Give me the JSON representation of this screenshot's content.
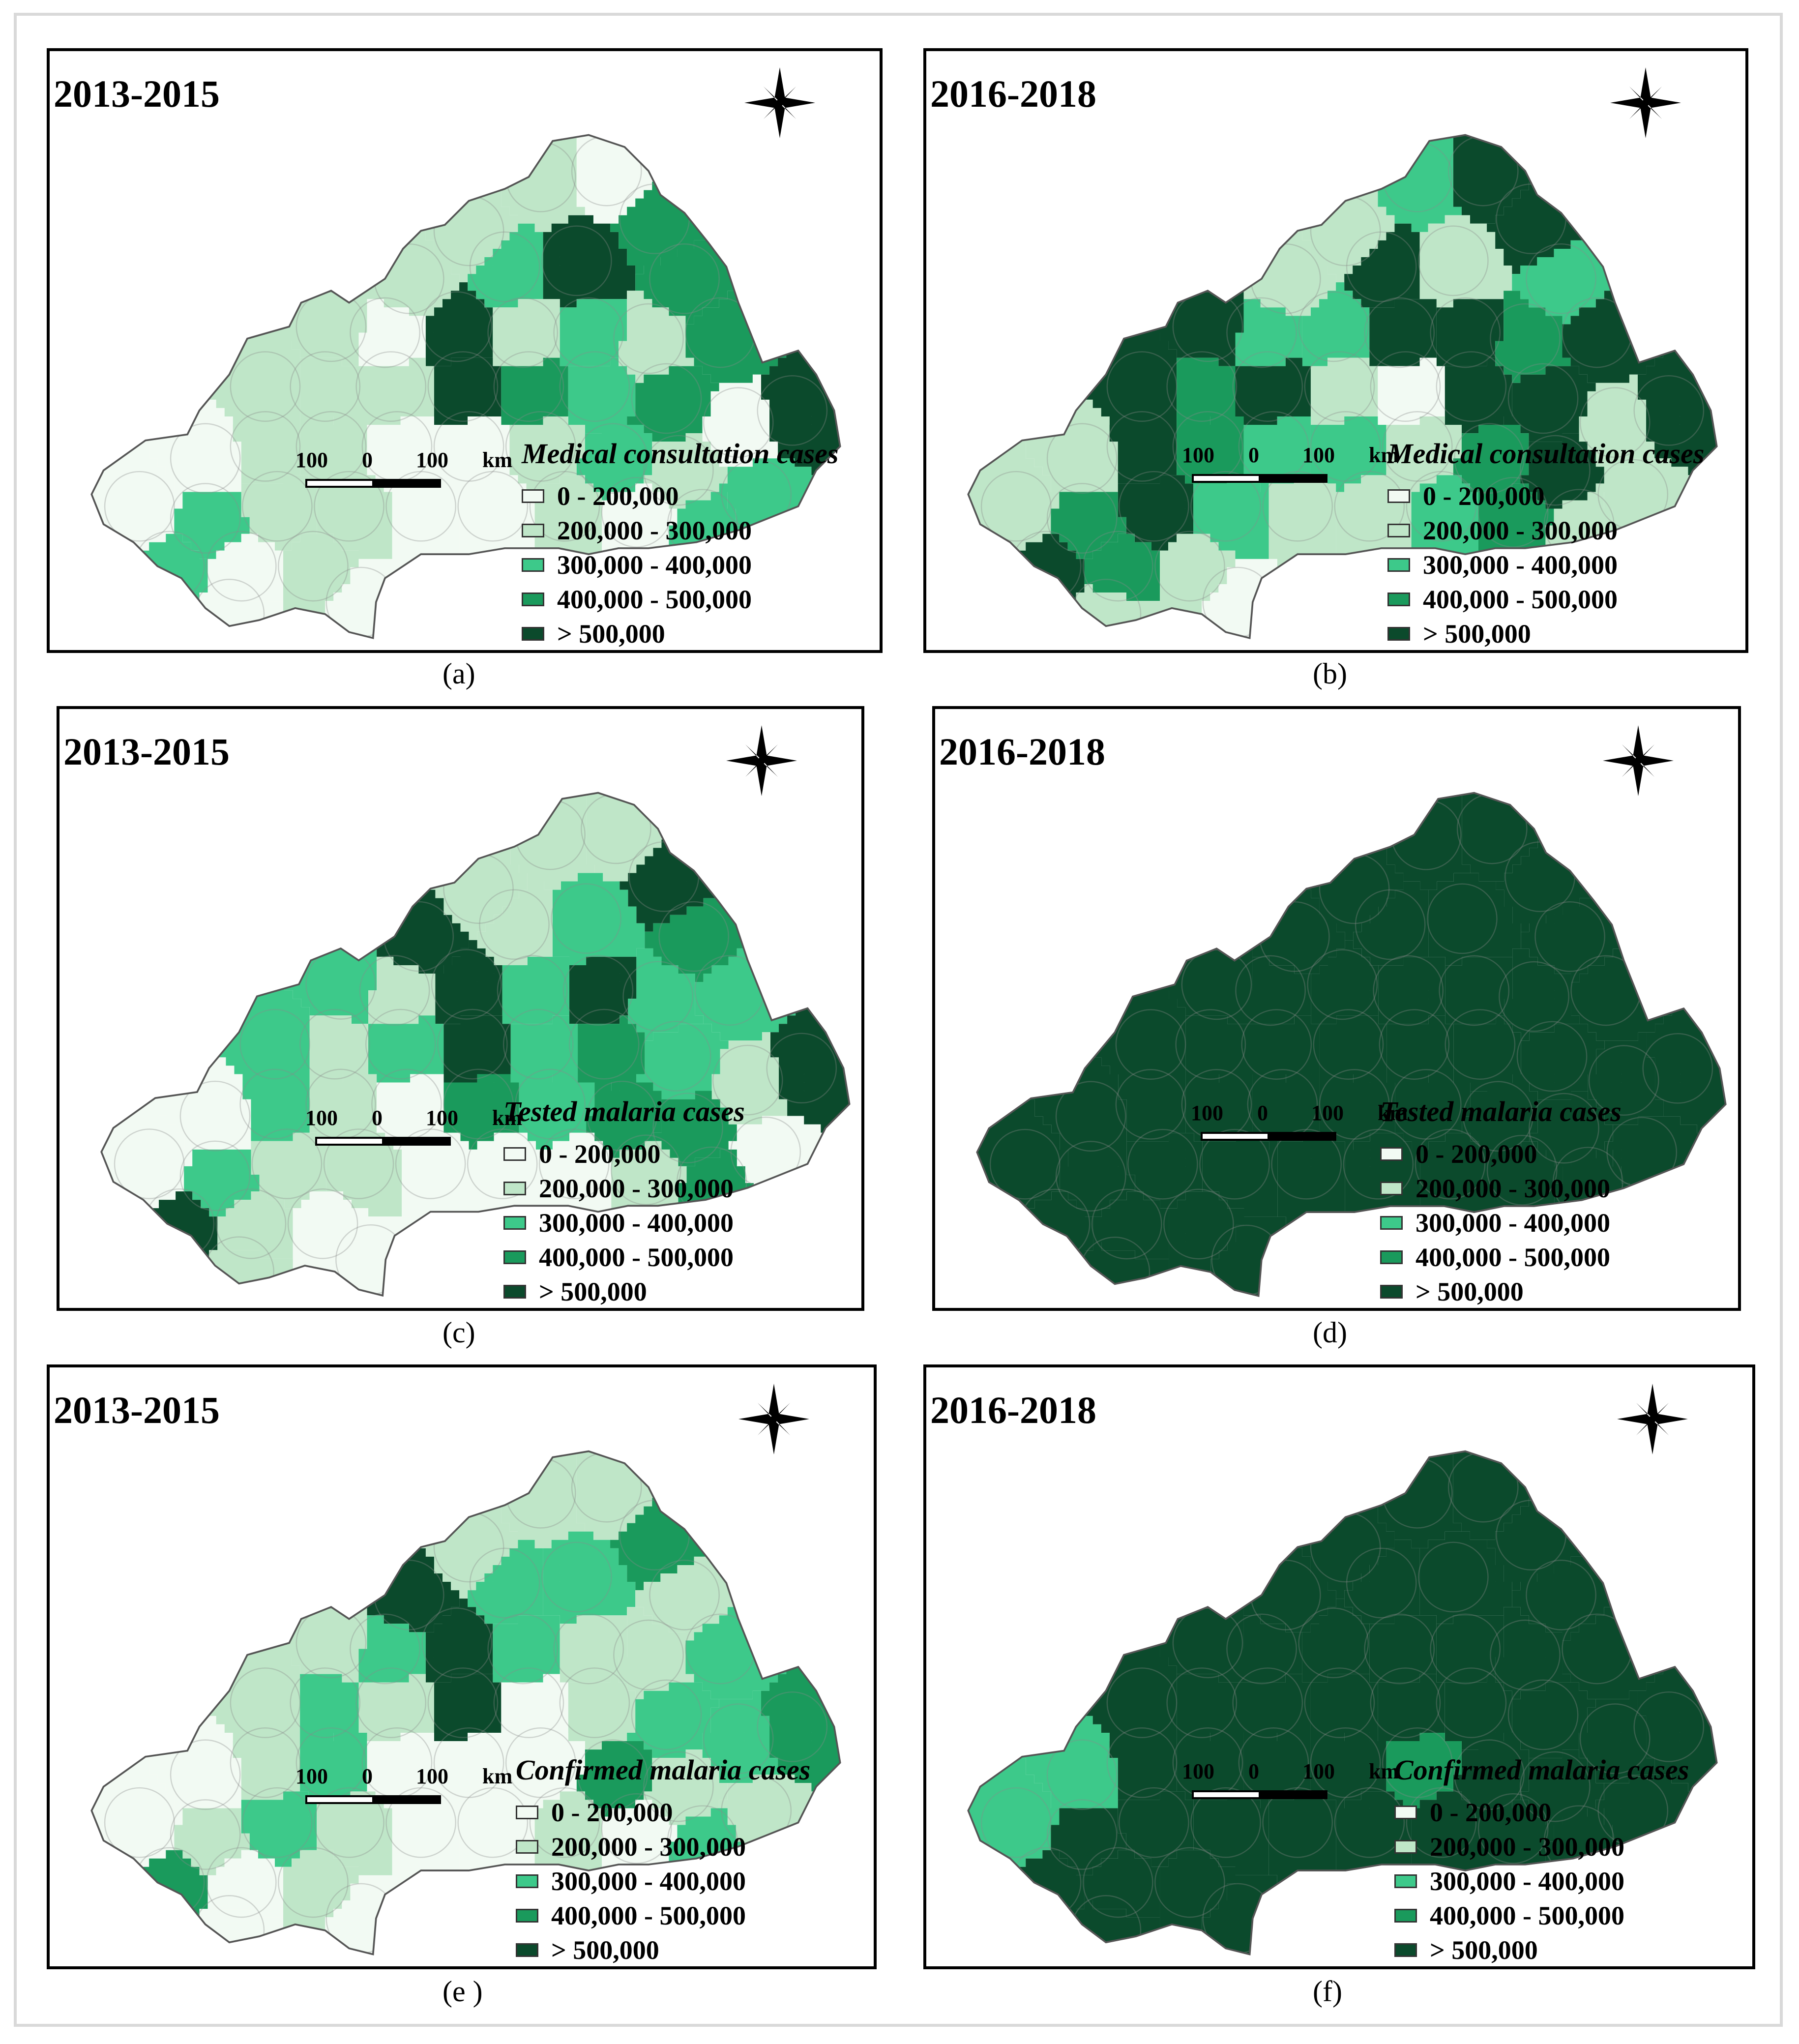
{
  "legend_classes": [
    {
      "label": "0 - 200,000",
      "color": "#f2faf3"
    },
    {
      "label": "200,000 - 300,000",
      "color": "#bfe6c8"
    },
    {
      "label": "300,000 - 400,000",
      "color": "#3dc98a"
    },
    {
      "label": "400,000 - 500,000",
      "color": "#1a9a5c"
    },
    {
      "label": "> 500,000",
      "color": "#0b4a2c"
    }
  ],
  "scale_labels": [
    "100",
    "0",
    "100",
    "km"
  ],
  "panels": [
    {
      "caption": "(a)",
      "period": "2013-2015",
      "legend_title": "Medical consultation cases",
      "dominant_class": 1
    },
    {
      "caption": "(b)",
      "period": "2016-2018",
      "legend_title": "Medical consultation cases",
      "dominant_class": 4
    },
    {
      "caption": "(c)",
      "period": "2013-2015",
      "legend_title": "Tested malaria cases",
      "dominant_class": 1
    },
    {
      "caption": "(d)",
      "period": "2016-2018",
      "legend_title": "Tested malaria cases",
      "dominant_class": 4
    },
    {
      "caption": "(e )",
      "period": "2013-2015",
      "legend_title": "Confirmed malaria cases",
      "dominant_class": 1
    },
    {
      "caption": "(f)",
      "period": "2016-2018",
      "legend_title": "Confirmed malaria cases",
      "dominant_class": 4
    }
  ]
}
